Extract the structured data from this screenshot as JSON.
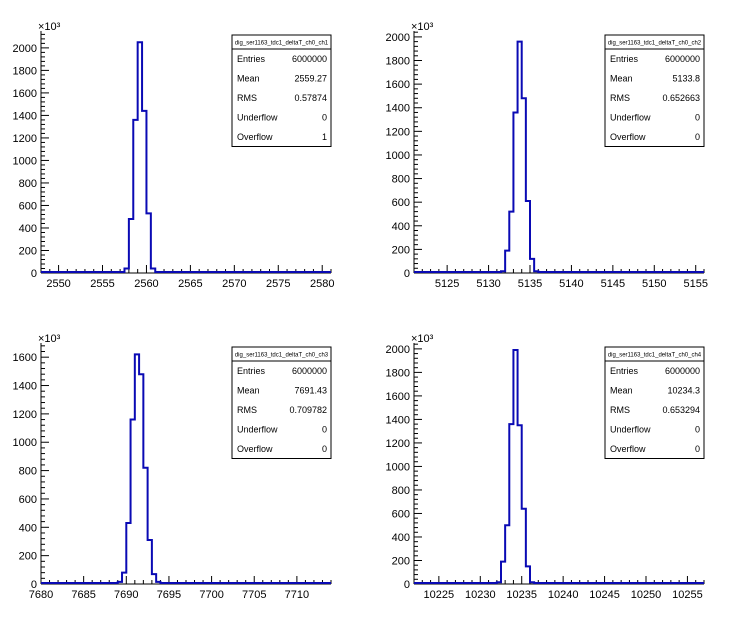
{
  "colors": {
    "histogram_line": "#0a0ab4",
    "axis": "#000000",
    "background": "#ffffff"
  },
  "chart_data": [
    {
      "type": "histogram",
      "title": "",
      "xlabel": "",
      "ylabel": "",
      "y_exponent_label": "×10³",
      "xlim": [
        2548,
        2581
      ],
      "ylim": [
        0,
        2150
      ],
      "x_ticks": [
        2550,
        2555,
        2560,
        2565,
        2570,
        2575,
        2580
      ],
      "x_tick_labels": [
        "2550",
        "2555",
        "2560",
        "2565",
        "2570",
        "2575",
        "2580"
      ],
      "y_ticks": [
        0,
        200,
        400,
        600,
        800,
        1000,
        1200,
        1400,
        1600,
        1800,
        2000
      ],
      "y_tick_labels": [
        "0",
        "200",
        "400",
        "600",
        "800",
        "1000",
        "1200",
        "1400",
        "1600",
        "1800",
        "2000"
      ],
      "bin_width": 0.5,
      "bins": [
        {
          "x0": 2557.5,
          "y": 40
        },
        {
          "x0": 2558.0,
          "y": 480
        },
        {
          "x0": 2558.5,
          "y": 1360
        },
        {
          "x0": 2559.0,
          "y": 2050
        },
        {
          "x0": 2559.5,
          "y": 1440
        },
        {
          "x0": 2560.0,
          "y": 530
        },
        {
          "x0": 2560.5,
          "y": 40
        }
      ],
      "stats": {
        "name": "dig_ser1163_tdc1_deltaT_ch0_ch1",
        "rows": [
          {
            "label": "Entries",
            "value": "6000000"
          },
          {
            "label": "Mean",
            "value": "2559.27"
          },
          {
            "label": "RMS",
            "value": "0.57874"
          },
          {
            "label": "Underflow",
            "value": "0"
          },
          {
            "label": "Overflow",
            "value": "1"
          }
        ]
      }
    },
    {
      "type": "histogram",
      "title": "",
      "xlabel": "",
      "ylabel": "",
      "y_exponent_label": "×10³",
      "xlim": [
        5121,
        5156
      ],
      "ylim": [
        0,
        2050
      ],
      "x_ticks": [
        5125,
        5130,
        5135,
        5140,
        5145,
        5150,
        5155
      ],
      "x_tick_labels": [
        "5125",
        "5130",
        "5135",
        "5140",
        "5145",
        "5150",
        "5155"
      ],
      "y_ticks": [
        0,
        200,
        400,
        600,
        800,
        1000,
        1200,
        1400,
        1600,
        1800,
        2000
      ],
      "y_tick_labels": [
        "0",
        "200",
        "400",
        "600",
        "800",
        "1000",
        "1200",
        "1400",
        "1600",
        "1800",
        "2000"
      ],
      "bin_width": 0.5,
      "bins": [
        {
          "x0": 5131.5,
          "y": 15
        },
        {
          "x0": 5132.0,
          "y": 190
        },
        {
          "x0": 5132.5,
          "y": 520
        },
        {
          "x0": 5133.0,
          "y": 1360
        },
        {
          "x0": 5133.5,
          "y": 1960
        },
        {
          "x0": 5134.0,
          "y": 1480
        },
        {
          "x0": 5134.5,
          "y": 610
        },
        {
          "x0": 5135.0,
          "y": 120
        },
        {
          "x0": 5135.5,
          "y": 15
        }
      ],
      "stats": {
        "name": "dig_ser1163_tdc1_deltaT_ch0_ch2",
        "rows": [
          {
            "label": "Entries",
            "value": "6000000"
          },
          {
            "label": "Mean",
            "value": "5133.8"
          },
          {
            "label": "RMS",
            "value": "0.652663"
          },
          {
            "label": "Underflow",
            "value": "0"
          },
          {
            "label": "Overflow",
            "value": "0"
          }
        ]
      }
    },
    {
      "type": "histogram",
      "title": "",
      "xlabel": "",
      "ylabel": "",
      "y_exponent_label": "×10³",
      "xlim": [
        7680,
        7714
      ],
      "ylim": [
        0,
        1700
      ],
      "x_ticks": [
        7680,
        7685,
        7690,
        7695,
        7700,
        7705,
        7710
      ],
      "x_tick_labels": [
        "7680",
        "7685",
        "7690",
        "7695",
        "7700",
        "7705",
        "7710"
      ],
      "y_ticks": [
        0,
        200,
        400,
        600,
        800,
        1000,
        1200,
        1400,
        1600
      ],
      "y_tick_labels": [
        "0",
        "200",
        "400",
        "600",
        "800",
        "1000",
        "1200",
        "1400",
        "1600"
      ],
      "bin_width": 0.5,
      "bins": [
        {
          "x0": 7689.0,
          "y": 15
        },
        {
          "x0": 7689.5,
          "y": 80
        },
        {
          "x0": 7690.0,
          "y": 430
        },
        {
          "x0": 7690.5,
          "y": 1160
        },
        {
          "x0": 7691.0,
          "y": 1620
        },
        {
          "x0": 7691.5,
          "y": 1480
        },
        {
          "x0": 7692.0,
          "y": 820
        },
        {
          "x0": 7692.5,
          "y": 310
        },
        {
          "x0": 7693.0,
          "y": 70
        },
        {
          "x0": 7693.5,
          "y": 15
        }
      ],
      "stats": {
        "name": "dig_ser1163_tdc1_deltaT_ch0_ch3",
        "rows": [
          {
            "label": "Entries",
            "value": "6000000"
          },
          {
            "label": "Mean",
            "value": "7691.43"
          },
          {
            "label": "RMS",
            "value": "0.709782"
          },
          {
            "label": "Underflow",
            "value": "0"
          },
          {
            "label": "Overflow",
            "value": "0"
          }
        ]
      }
    },
    {
      "type": "histogram",
      "title": "",
      "xlabel": "",
      "ylabel": "",
      "y_exponent_label": "×10³",
      "xlim": [
        10222,
        10257
      ],
      "ylim": [
        0,
        2050
      ],
      "x_ticks": [
        10225,
        10230,
        10235,
        10240,
        10245,
        10250,
        10255
      ],
      "x_tick_labels": [
        "10225",
        "10230",
        "10235",
        "10240",
        "10245",
        "10250",
        "10255"
      ],
      "y_ticks": [
        0,
        200,
        400,
        600,
        800,
        1000,
        1200,
        1400,
        1600,
        1800,
        2000
      ],
      "y_tick_labels": [
        "0",
        "200",
        "400",
        "600",
        "800",
        "1000",
        "1200",
        "1400",
        "1600",
        "1800",
        "2000"
      ],
      "bin_width": 0.5,
      "bins": [
        {
          "x0": 10232.0,
          "y": 15
        },
        {
          "x0": 10232.5,
          "y": 190
        },
        {
          "x0": 10233.0,
          "y": 500
        },
        {
          "x0": 10233.5,
          "y": 1360
        },
        {
          "x0": 10234.0,
          "y": 1990
        },
        {
          "x0": 10234.5,
          "y": 1350
        },
        {
          "x0": 10235.0,
          "y": 640
        },
        {
          "x0": 10235.5,
          "y": 150
        },
        {
          "x0": 10236.0,
          "y": 15
        }
      ],
      "stats": {
        "name": "dig_ser1163_tdc1_deltaT_ch0_ch4",
        "rows": [
          {
            "label": "Entries",
            "value": "6000000"
          },
          {
            "label": "Mean",
            "value": "10234.3"
          },
          {
            "label": "RMS",
            "value": "0.653294"
          },
          {
            "label": "Underflow",
            "value": "0"
          },
          {
            "label": "Overflow",
            "value": "0"
          }
        ]
      }
    }
  ]
}
